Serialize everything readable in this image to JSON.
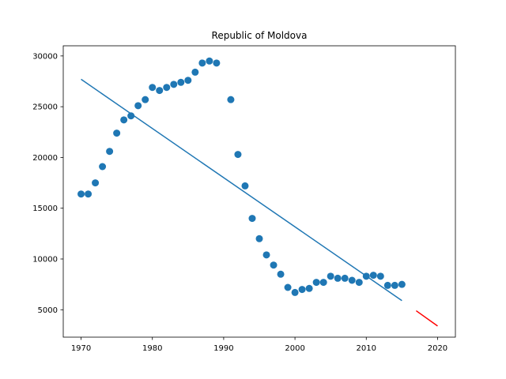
{
  "chart_data": {
    "type": "scatter",
    "title": "Republic of Moldova",
    "xlabel": "",
    "ylabel": "",
    "xlim": [
      1967.5,
      2022.5
    ],
    "ylim": [
      2300,
      31000
    ],
    "x_ticks": [
      1970,
      1980,
      1990,
      2000,
      2010,
      2020
    ],
    "y_ticks": [
      5000,
      10000,
      15000,
      20000,
      25000,
      30000
    ],
    "grid": false,
    "legend": "none",
    "series": [
      {
        "type": "scatter",
        "color": "#1f77b4",
        "points": [
          [
            1970,
            16400
          ],
          [
            1971,
            16400
          ],
          [
            1972,
            17500
          ],
          [
            1973,
            19100
          ],
          [
            1974,
            20600
          ],
          [
            1975,
            22400
          ],
          [
            1976,
            23700
          ],
          [
            1977,
            24100
          ],
          [
            1978,
            25100
          ],
          [
            1979,
            25700
          ],
          [
            1980,
            26900
          ],
          [
            1981,
            26600
          ],
          [
            1982,
            26900
          ],
          [
            1983,
            27200
          ],
          [
            1984,
            27400
          ],
          [
            1985,
            27600
          ],
          [
            1986,
            28400
          ],
          [
            1987,
            29300
          ],
          [
            1988,
            29500
          ],
          [
            1989,
            29300
          ],
          [
            1991,
            25700
          ],
          [
            1992,
            20300
          ],
          [
            1993,
            17200
          ],
          [
            1994,
            14000
          ],
          [
            1995,
            12000
          ],
          [
            1996,
            10400
          ],
          [
            1997,
            9400
          ],
          [
            1998,
            8500
          ],
          [
            1999,
            7200
          ],
          [
            2000,
            6700
          ],
          [
            2001,
            7000
          ],
          [
            2002,
            7100
          ],
          [
            2003,
            7700
          ],
          [
            2004,
            7700
          ],
          [
            2005,
            8300
          ],
          [
            2006,
            8100
          ],
          [
            2007,
            8100
          ],
          [
            2008,
            7900
          ],
          [
            2009,
            7700
          ],
          [
            2010,
            8300
          ],
          [
            2011,
            8400
          ],
          [
            2012,
            8300
          ],
          [
            2013,
            7400
          ],
          [
            2014,
            7400
          ],
          [
            2015,
            7500
          ]
        ]
      },
      {
        "type": "line",
        "color": "#1f77b4",
        "points": [
          [
            1970,
            27700
          ],
          [
            2015,
            5900
          ]
        ]
      },
      {
        "type": "line",
        "color": "#ff0000",
        "points": [
          [
            2017,
            4900
          ],
          [
            2020,
            3400
          ]
        ]
      }
    ]
  }
}
